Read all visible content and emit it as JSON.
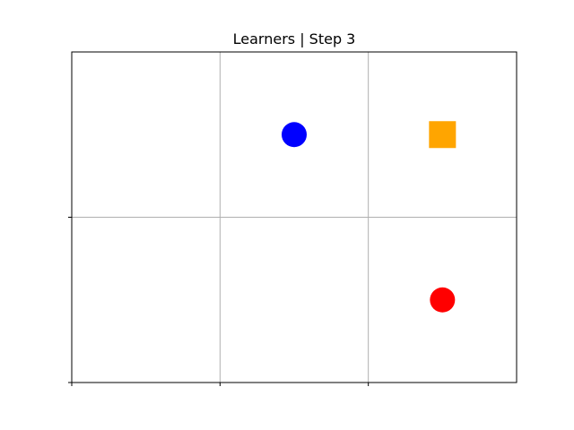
{
  "title": "Learners | Step 3",
  "grid": {
    "cols": 3,
    "rows": 2,
    "show_grid": true,
    "grid_color": "#b0b0b0",
    "axes_color": "#000000"
  },
  "entities": [
    {
      "name": "blue-agent",
      "shape": "circle",
      "color": "#0000ff",
      "col": 1.5,
      "row": 1.5
    },
    {
      "name": "orange-goal",
      "shape": "square",
      "color": "#ffa500",
      "col": 2.5,
      "row": 1.5
    },
    {
      "name": "red-agent",
      "shape": "circle",
      "color": "#ff0000",
      "col": 2.5,
      "row": 0.5
    }
  ]
}
